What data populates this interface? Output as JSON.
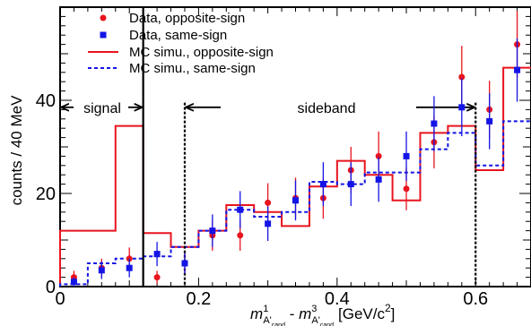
{
  "chart_data": {
    "type": "histogram",
    "ylabel": "counts / 40 MeV",
    "xlabel": {
      "part1": "m",
      "sup1": "1",
      "sub1": "A'",
      "sub1b": "cand",
      "sep": " - ",
      "part2": "m",
      "sup2": "3",
      "sub2": "A'",
      "sub2b": "cand",
      "unit": "[GeV/c",
      "unit_sup": "2",
      "unit_end": "]"
    },
    "xlim": [
      0,
      0.68
    ],
    "ylim": [
      0,
      60
    ],
    "x_ticks": [
      {
        "value": 0,
        "label": "0"
      },
      {
        "value": 0.2,
        "label": "0.2"
      },
      {
        "value": 0.4,
        "label": "0.4"
      },
      {
        "value": 0.6,
        "label": "0.6"
      }
    ],
    "y_ticks": [
      {
        "value": 0,
        "label": "0"
      },
      {
        "value": 20,
        "label": "20"
      },
      {
        "value": 40,
        "label": "40"
      }
    ],
    "bin_edges": [
      0,
      0.04,
      0.08,
      0.12,
      0.16,
      0.2,
      0.24,
      0.28,
      0.32,
      0.36,
      0.4,
      0.44,
      0.48,
      0.52,
      0.56,
      0.6,
      0.64,
      0.68
    ],
    "series": [
      {
        "name": "Data, opposite-sign",
        "kind": "points",
        "marker": "circle",
        "color": "#e8141e",
        "x": [
          0.02,
          0.06,
          0.1,
          0.14,
          0.18,
          0.22,
          0.26,
          0.3,
          0.34,
          0.38,
          0.42,
          0.46,
          0.5,
          0.54,
          0.58,
          0.62,
          0.66
        ],
        "y": [
          2,
          4,
          6,
          2,
          5,
          11,
          11,
          18,
          19,
          19,
          25,
          28,
          21,
          31,
          45,
          38,
          52
        ],
        "err": [
          1.4,
          2,
          2.4,
          1.4,
          2.2,
          3.3,
          3.3,
          4.2,
          4.4,
          4.4,
          5,
          5.3,
          4.6,
          5.6,
          6.7,
          6.2,
          7.2
        ]
      },
      {
        "name": "Data, same-sign",
        "kind": "points",
        "marker": "square",
        "color": "#1414e6",
        "x": [
          0.02,
          0.06,
          0.1,
          0.14,
          0.18,
          0.22,
          0.26,
          0.3,
          0.34,
          0.38,
          0.42,
          0.46,
          0.5,
          0.54,
          0.58,
          0.62,
          0.66
        ],
        "y": [
          1,
          3.5,
          4,
          7,
          5,
          12,
          16.5,
          13.5,
          18.5,
          22,
          22,
          23,
          28,
          35,
          38.5,
          35.5,
          46.5
        ],
        "err": [
          1,
          1.9,
          2,
          2.6,
          2.2,
          3.5,
          4,
          3.7,
          4.3,
          4.7,
          4.7,
          4.8,
          5.3,
          5.9,
          6.2,
          6,
          6.8
        ]
      },
      {
        "name": "MC simu., opposite-sign",
        "kind": "histogram",
        "style": "solid",
        "color": "#e8141e",
        "values": [
          12,
          12,
          34.5,
          11.5,
          8.5,
          12,
          17.5,
          16,
          13,
          21.5,
          27,
          24,
          18.5,
          33,
          34.5,
          25,
          47
        ]
      },
      {
        "name": "MC simu., same-sign",
        "kind": "histogram",
        "style": "dashed",
        "color": "#1414e6",
        "values": [
          0.5,
          5,
          6,
          6.5,
          8.5,
          12,
          16.5,
          15,
          16,
          22.5,
          22,
          24.5,
          24.5,
          29.5,
          33,
          26,
          35.5
        ]
      }
    ],
    "regions": {
      "signal_label": "signal",
      "sideband_label": "sideband",
      "signal_range": [
        0,
        0.12
      ],
      "sideband_left": 0.18,
      "sideband_right": 0.6,
      "arrow_y": 38.5
    },
    "legend_position": "top-left"
  }
}
